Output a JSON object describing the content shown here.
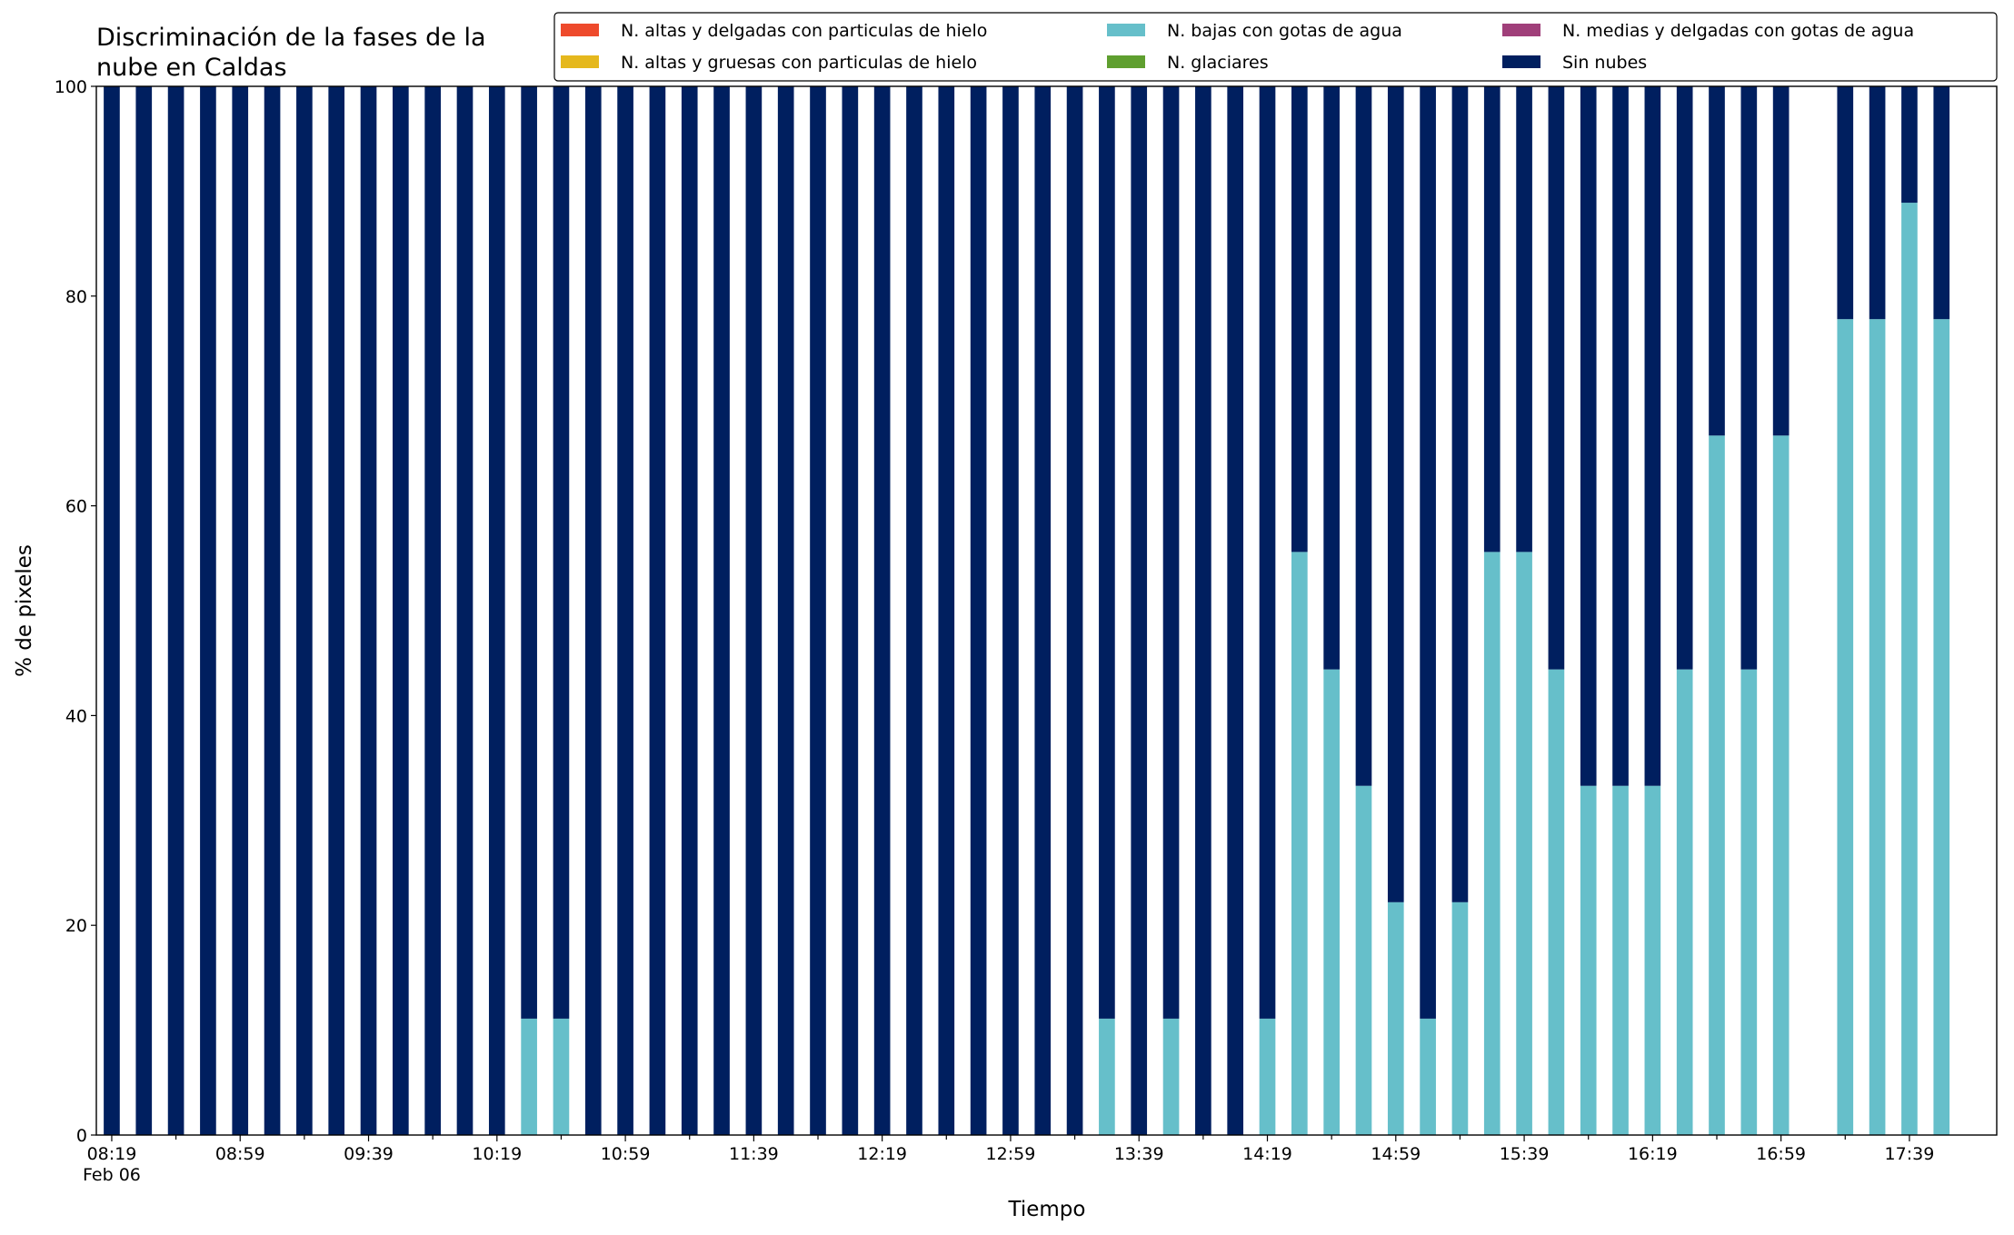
{
  "chart_data": {
    "type": "stacked_bar",
    "title": "Discriminación de la fases de la nube en Caldas",
    "title_lines": [
      "Discriminación de la fases de la",
      "nube en Caldas"
    ],
    "xlabel": "Tiempo",
    "ylabel": "% de pixeles",
    "x_sublabel": "Feb 06",
    "categories": [
      "08:19",
      null,
      null,
      null,
      "08:59",
      null,
      null,
      null,
      "09:39",
      null,
      null,
      null,
      "10:19",
      null,
      null,
      null,
      "10:59",
      null,
      null,
      null,
      "11:39",
      null,
      null,
      null,
      "12:19",
      null,
      null,
      null,
      "12:59",
      null,
      null,
      null,
      "13:39",
      null,
      null,
      null,
      "14:19",
      null,
      null,
      null,
      "14:59",
      null,
      null,
      null,
      "15:39",
      null,
      null,
      null,
      "16:19",
      null,
      null,
      null,
      "16:59",
      null,
      null,
      null,
      "17:39",
      null
    ],
    "ylim": [
      0,
      100
    ],
    "yticks": [
      0,
      20,
      40,
      60,
      80,
      100
    ],
    "legend": "top-right",
    "series": [
      {
        "name": "N. altas y delgadas con particulas de hielo",
        "color": "#ee4a2c",
        "values": [
          0,
          0,
          0,
          0,
          0,
          0,
          0,
          0,
          0,
          0,
          0,
          0,
          0,
          0,
          0,
          0,
          0,
          0,
          0,
          0,
          0,
          0,
          0,
          0,
          0,
          0,
          0,
          0,
          0,
          0,
          0,
          0,
          0,
          0,
          0,
          0,
          0,
          0,
          0,
          0,
          0,
          0,
          0,
          0,
          0,
          0,
          0,
          0,
          0,
          0,
          0,
          0,
          0,
          null,
          0,
          0,
          0,
          0
        ]
      },
      {
        "name": "N. altas y gruesas con particulas de hielo",
        "color": "#e5b81d",
        "values": [
          0,
          0,
          0,
          0,
          0,
          0,
          0,
          0,
          0,
          0,
          0,
          0,
          0,
          0,
          0,
          0,
          0,
          0,
          0,
          0,
          0,
          0,
          0,
          0,
          0,
          0,
          0,
          0,
          0,
          0,
          0,
          0,
          0,
          0,
          0,
          0,
          0,
          0,
          0,
          0,
          0,
          0,
          0,
          0,
          0,
          0,
          0,
          0,
          0,
          0,
          0,
          0,
          0,
          null,
          0,
          0,
          0,
          0
        ]
      },
      {
        "name": "N. bajas con gotas de agua",
        "color": "#66bfca",
        "values": [
          0,
          0,
          0,
          0,
          0,
          0,
          0,
          0,
          0,
          0,
          0,
          0,
          0,
          11.1,
          11.1,
          0,
          0,
          0,
          0,
          0,
          0,
          0,
          0,
          0,
          0,
          0,
          0,
          0,
          0,
          0,
          0,
          11.1,
          0,
          11.1,
          0,
          0,
          11.1,
          55.6,
          44.4,
          33.3,
          22.2,
          11.1,
          22.2,
          55.6,
          55.6,
          44.4,
          33.3,
          33.3,
          33.3,
          44.4,
          66.7,
          44.4,
          66.7,
          null,
          77.8,
          77.8,
          88.9,
          77.8
        ]
      },
      {
        "name": "N. glaciares",
        "color": "#5f9f2f",
        "values": [
          0,
          0,
          0,
          0,
          0,
          0,
          0,
          0,
          0,
          0,
          0,
          0,
          0,
          0,
          0,
          0,
          0,
          0,
          0,
          0,
          0,
          0,
          0,
          0,
          0,
          0,
          0,
          0,
          0,
          0,
          0,
          0,
          0,
          0,
          0,
          0,
          0,
          0,
          0,
          0,
          0,
          0,
          0,
          0,
          0,
          0,
          0,
          0,
          0,
          0,
          0,
          0,
          0,
          null,
          0,
          0,
          0,
          0
        ]
      },
      {
        "name": "N. medias y delgadas con gotas de agua",
        "color": "#a03f7a",
        "values": [
          0,
          0,
          0,
          0,
          0,
          0,
          0,
          0,
          0,
          0,
          0,
          0,
          0,
          0,
          0,
          0,
          0,
          0,
          0,
          0,
          0,
          0,
          0,
          0,
          0,
          0,
          0,
          0,
          0,
          0,
          0,
          0,
          0,
          0,
          0,
          0,
          0,
          0,
          0,
          0,
          0,
          0,
          0,
          0,
          0,
          0,
          0,
          0,
          0,
          0,
          0,
          0,
          0,
          null,
          0,
          0,
          0,
          0
        ]
      },
      {
        "name": "Sin nubes",
        "color": "#001f5f",
        "values": [
          100,
          100,
          100,
          100,
          100,
          100,
          100,
          100,
          100,
          100,
          100,
          100,
          100,
          88.9,
          88.9,
          100,
          100,
          100,
          100,
          100,
          100,
          100,
          100,
          100,
          100,
          100,
          100,
          100,
          100,
          100,
          100,
          88.9,
          100,
          88.9,
          100,
          100,
          88.9,
          44.4,
          55.6,
          66.7,
          77.8,
          88.9,
          77.8,
          44.4,
          44.4,
          55.6,
          66.7,
          66.7,
          66.7,
          55.6,
          33.3,
          55.6,
          33.3,
          null,
          22.2,
          22.2,
          11.1,
          22.2
        ]
      }
    ]
  }
}
